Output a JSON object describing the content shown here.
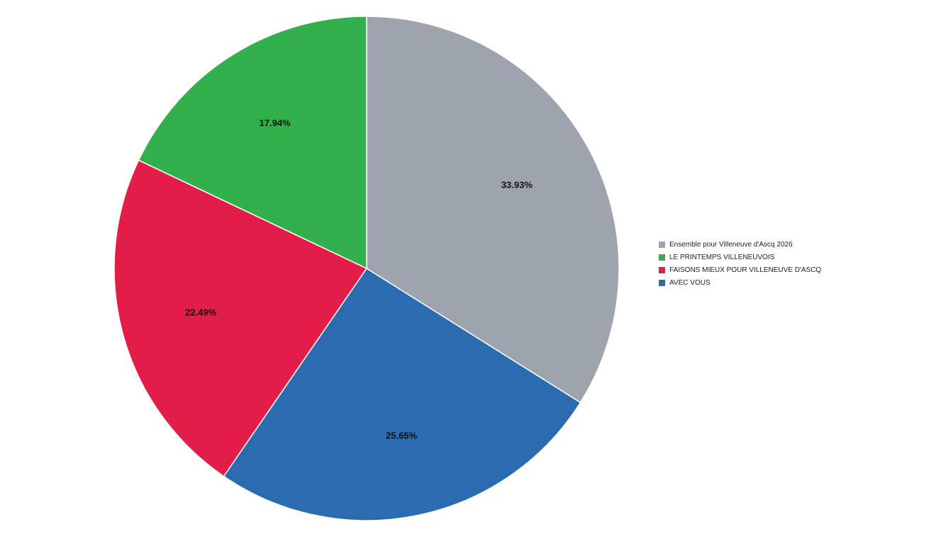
{
  "chart_data": {
    "type": "pie",
    "title": "",
    "legend_position": "right",
    "start_angle_deg": 0,
    "direction": "clockwise",
    "slices": [
      {
        "name": "Ensemble pour Villeneuve d'Ascq 2026",
        "value": 33.93,
        "label": "33.93%",
        "color": "#9ea3ae"
      },
      {
        "name": "AVEC VOUS",
        "value": 25.65,
        "label": "25.65%",
        "color": "#2b6cb0"
      },
      {
        "name": "FAISONS MIEUX POUR VILLENEUVE D'ASCQ",
        "value": 22.49,
        "label": "22.49%",
        "color": "#e11d48"
      },
      {
        "name": "LE PRINTEMPS VILLENEUVOIS",
        "value": 17.94,
        "label": "17.94%",
        "color": "#31b04b"
      }
    ],
    "legend_order": [
      "Ensemble pour Villeneuve d'Ascq 2026",
      "LE PRINTEMPS VILLENEUVOIS",
      "FAISONS MIEUX POUR VILLENEUVE D'ASCQ",
      "AVEC VOUS"
    ]
  }
}
